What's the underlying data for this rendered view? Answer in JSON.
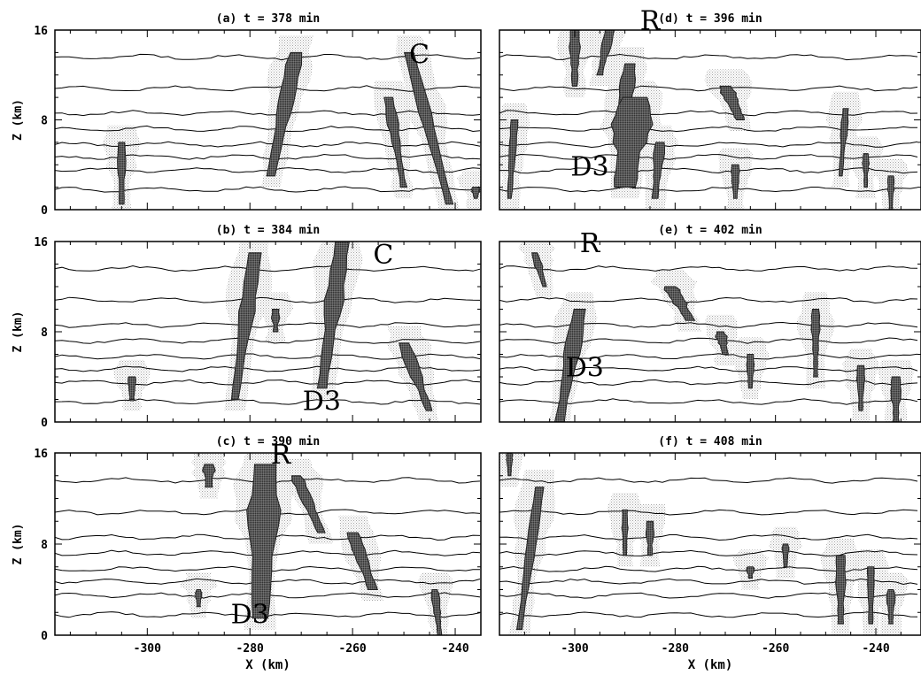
{
  "chart_data": [
    {
      "type": "contour",
      "title": "(a) t = 378 min",
      "xlabel": "",
      "ylabel": "Z (km)",
      "xlim": [
        -318,
        -235
      ],
      "ylim": [
        0,
        16
      ],
      "y_ticks": [
        "0",
        "8",
        "16"
      ],
      "x_ticks": [],
      "annotations": [
        {
          "text": "C",
          "x": -247,
          "y": 14
        }
      ]
    },
    {
      "type": "contour",
      "title": "(b) t = 384 min",
      "xlabel": "",
      "ylabel": "Z (km)",
      "xlim": [
        -318,
        -235
      ],
      "ylim": [
        0,
        16
      ],
      "y_ticks": [
        "0",
        "8",
        "16"
      ],
      "x_ticks": [],
      "annotations": [
        {
          "text": "C",
          "x": -254,
          "y": 15
        },
        {
          "text": "D3",
          "x": -266,
          "y": 2
        }
      ]
    },
    {
      "type": "contour",
      "title": "(c) t = 390 min",
      "xlabel": "X (km)",
      "ylabel": "Z (km)",
      "xlim": [
        -318,
        -235
      ],
      "ylim": [
        0,
        16
      ],
      "y_ticks": [
        "0",
        "8",
        "16"
      ],
      "x_ticks": [
        "-300",
        "-280",
        "-260",
        "-240"
      ],
      "annotations": [
        {
          "text": "R",
          "x": -274,
          "y": 16
        },
        {
          "text": "D3",
          "x": -280,
          "y": 2
        }
      ]
    },
    {
      "type": "contour",
      "title": "(d) t = 396 min",
      "xlabel": "",
      "ylabel": "",
      "xlim": [
        -315,
        -231
      ],
      "ylim": [
        0,
        16
      ],
      "y_ticks": [],
      "x_ticks": [],
      "annotations": [
        {
          "text": "R",
          "x": -285,
          "y": 17
        },
        {
          "text": "D3",
          "x": -297,
          "y": 4
        }
      ]
    },
    {
      "type": "contour",
      "title": "(e) t = 402 min",
      "xlabel": "",
      "ylabel": "",
      "xlim": [
        -315,
        -231
      ],
      "ylim": [
        0,
        16
      ],
      "y_ticks": [],
      "x_ticks": [],
      "annotations": [
        {
          "text": "R",
          "x": -297,
          "y": 16
        },
        {
          "text": "D3",
          "x": -298,
          "y": 5
        }
      ]
    },
    {
      "type": "contour",
      "title": "(f) t = 408 min",
      "xlabel": "X (km)",
      "ylabel": "",
      "xlim": [
        -315,
        -231
      ],
      "ylim": [
        0,
        16
      ],
      "y_ticks": [],
      "x_ticks": [
        "-300",
        "-280",
        "-260",
        "-240"
      ],
      "annotations": []
    }
  ]
}
